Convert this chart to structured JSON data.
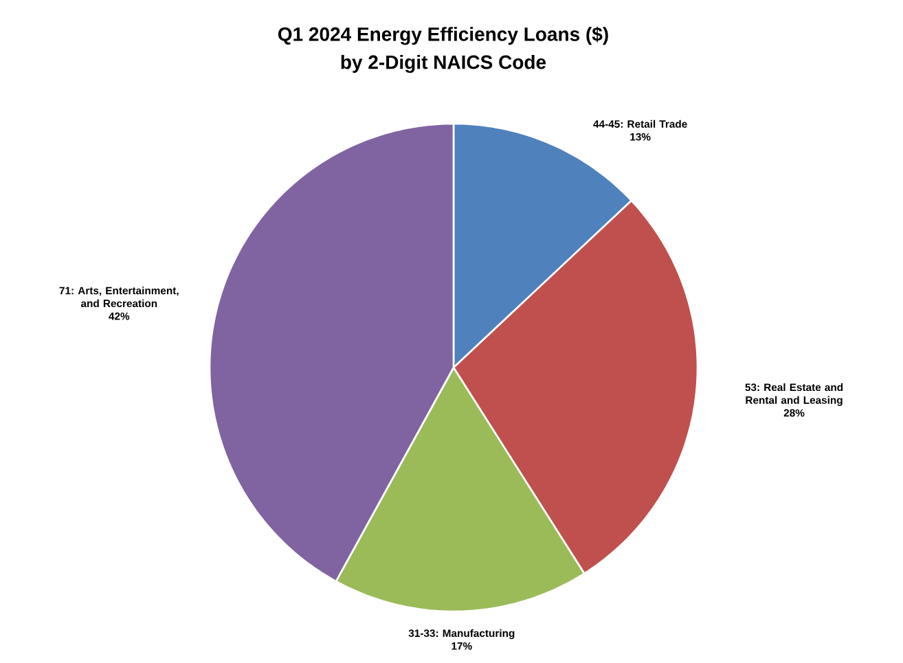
{
  "chart_data": {
    "type": "pie",
    "title": "Q1 2024 Energy Efficiency Loans ($)",
    "subtitle": "by 2-Digit NAICS Code",
    "categories": [
      "44-45: Retail Trade",
      "53: Real Estate and Rental and Leasing",
      "31-33: Manufacturing",
      "71: Arts, Entertainment, and Recreation"
    ],
    "values": [
      13,
      28,
      17,
      42
    ],
    "value_labels": [
      "13%",
      "28%",
      "17%",
      "42%"
    ],
    "colors": [
      "#4f81bd",
      "#c0504d",
      "#9bbb59",
      "#8064a2"
    ]
  }
}
